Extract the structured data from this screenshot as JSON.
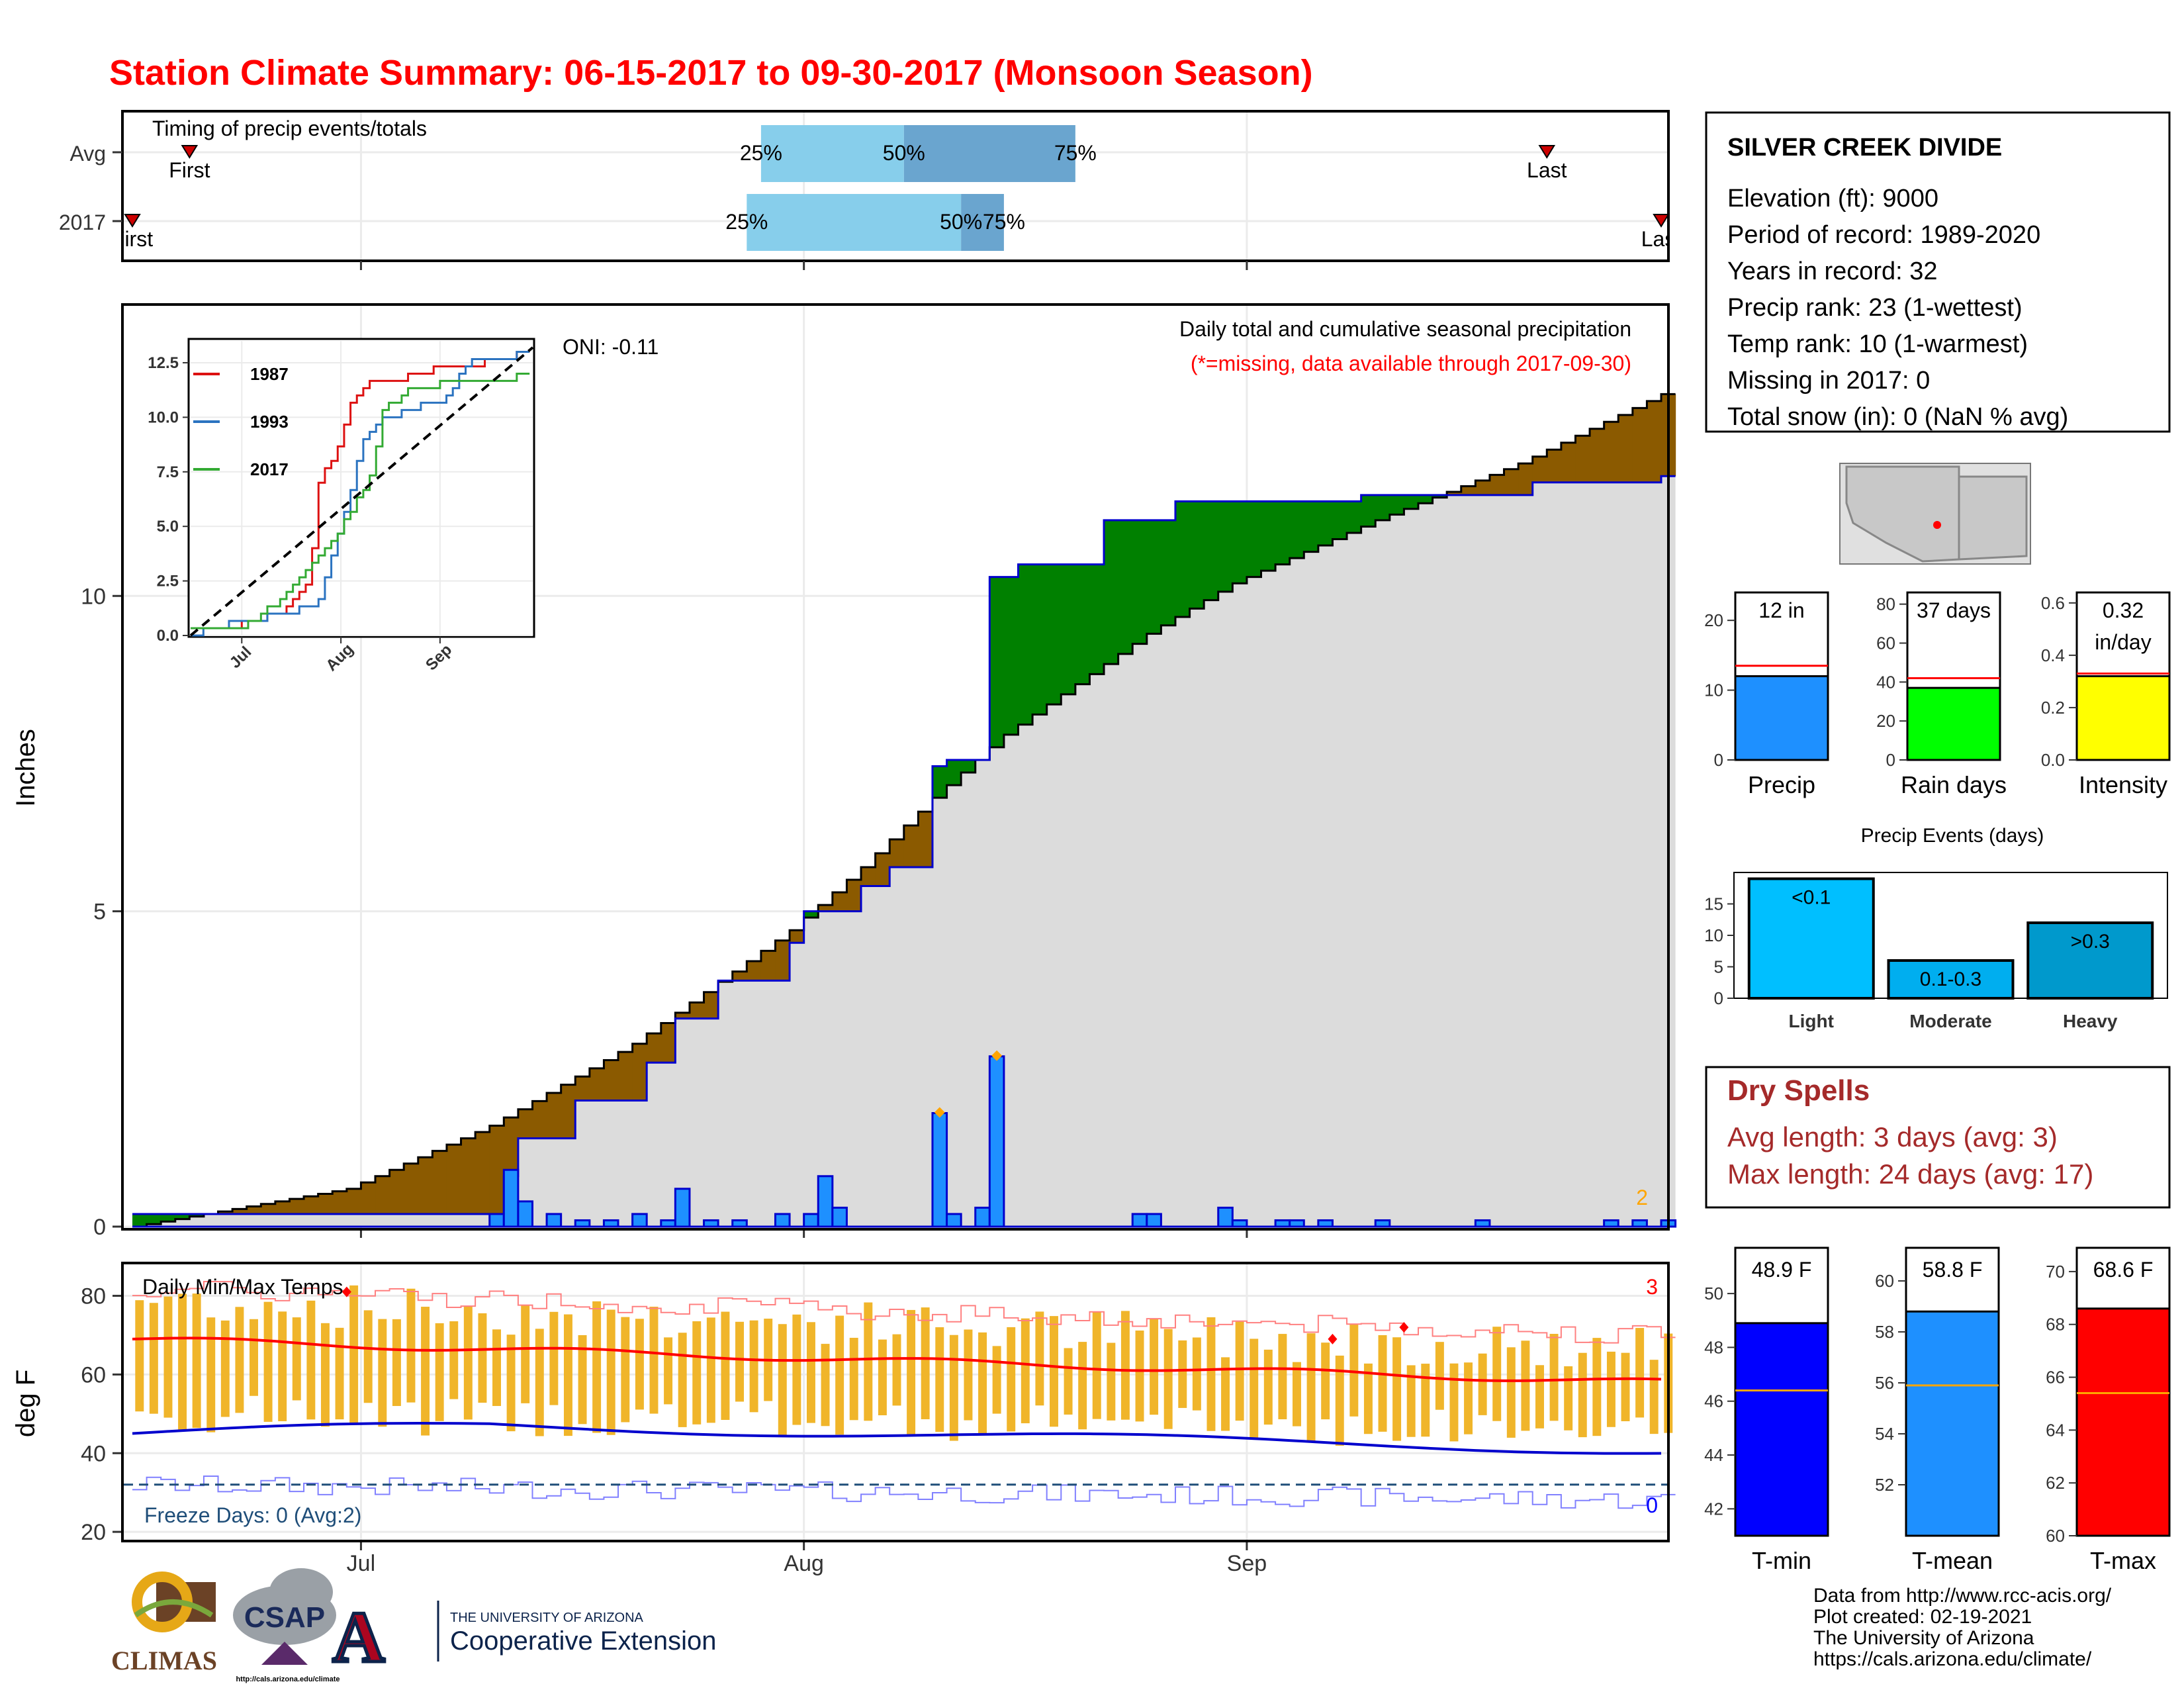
{
  "title": "Station Climate Summary: 06-15-2017 to 09-30-2017 (Monsoon Season)",
  "timing": {
    "title": "Timing of precip events/totals",
    "rows": [
      "Avg",
      "2017"
    ],
    "avg": {
      "first_label": "First",
      "last_label": "Last",
      "p25": "25%",
      "p50": "50%",
      "p75": "75%"
    },
    "y2017": {
      "first_label": "First",
      "last_label": "Last",
      "p25": "25%",
      "p50": "50%",
      "p75": "75%"
    }
  },
  "main": {
    "ylabel": "Inches",
    "caption": "Daily total and cumulative seasonal precipitation",
    "missing_note": "(*=missing, data available through 2017-09-30)",
    "oni": "ONI: -0.11",
    "missing_count": "2"
  },
  "inset": {
    "legend": [
      "1987",
      "1993",
      "2017"
    ],
    "legend_colors": [
      "#dd1111",
      "#2b73c0",
      "#33aa33"
    ],
    "yticks": [
      "0.0",
      "2.5",
      "5.0",
      "7.5",
      "10.0",
      "12.5"
    ],
    "xticks": [
      "Jul",
      "Aug",
      "Sep"
    ]
  },
  "temps": {
    "title": "Daily Min/Max Temps",
    "ylabel": "deg F",
    "freeze": "Freeze Days: 0 (Avg:2)",
    "max_count": "3",
    "min_count": "0",
    "yticks": [
      "20",
      "40",
      "60",
      "80"
    ]
  },
  "xaxis": {
    "ticks": [
      "Jul",
      "Aug",
      "Sep"
    ]
  },
  "station": {
    "name": "SILVER CREEK DIVIDE",
    "lines": [
      "Elevation (ft): 9000",
      "Period of record: 1989-2020",
      "Years in record: 32",
      "Precip rank: 23 (1-wettest)",
      "Temp rank: 10 (1-warmest)",
      "Missing in 2017: 0",
      "Total snow (in): 0 (NaN % avg)"
    ]
  },
  "mini_bars": [
    {
      "label": "Precip",
      "value_text": "12 in",
      "ticks": [
        "0",
        "10",
        "20"
      ],
      "color": "#1e90ff"
    },
    {
      "label": "Rain days",
      "value_text": "37 days",
      "ticks": [
        "0",
        "20",
        "40",
        "60",
        "80"
      ],
      "color": "#00ff00"
    },
    {
      "label": "Intensity",
      "value_text": "0.32",
      "value_text2": "in/day",
      "ticks": [
        "0.0",
        "0.2",
        "0.4",
        "0.6"
      ],
      "color": "#ffff00"
    }
  ],
  "events": {
    "title": "Precip Events (days)",
    "yticks": [
      "0",
      "5",
      "10",
      "15"
    ],
    "bars": [
      {
        "cat": "Light",
        "label": "<0.1",
        "color": "#00bfff"
      },
      {
        "cat": "Moderate",
        "label": "0.1-0.3",
        "color": "#00aeef"
      },
      {
        "cat": "Heavy",
        "label": ">0.3",
        "color": "#0099cc"
      }
    ]
  },
  "dry_spells": {
    "title": "Dry Spells",
    "avg_line": "Avg length: 3 days (avg: 3)",
    "max_line": "Max length: 24 days (avg: 17)"
  },
  "temp_bars": [
    {
      "label": "T-min",
      "value_text": "48.9 F",
      "ticks": [
        "42",
        "44",
        "46",
        "48",
        "50"
      ],
      "color": "#0000ff"
    },
    {
      "label": "T-mean",
      "value_text": "58.8 F",
      "ticks": [
        "52",
        "54",
        "56",
        "58",
        "60"
      ],
      "color": "#1e90ff"
    },
    {
      "label": "T-max",
      "value_text": "68.6 F",
      "ticks": [
        "60",
        "62",
        "64",
        "66",
        "68",
        "70"
      ],
      "color": "#ff0000"
    }
  ],
  "footer": {
    "lines": [
      "Data from http://www.rcc-acis.org/",
      "Plot created: 02-19-2021",
      "The University of Arizona",
      "https://cals.arizona.edu/climate/"
    ],
    "logo_climas": "CLIMAS",
    "logo_csap": "CSAP",
    "logo_csap_url": "http://cals.arizona.edu/climate",
    "ua_line1": "THE UNIVERSITY OF ARIZONA",
    "ua_line2": "Cooperative Extension",
    "ua_letter": "A"
  },
  "chart_data": [
    {
      "type": "bar",
      "title": "Timing of precip events/totals",
      "categories": [
        "Avg",
        "2017"
      ],
      "x_range": [
        "2017-06-15",
        "2017-09-30"
      ],
      "series": [
        {
          "name": "Avg",
          "first": "2017-06-19",
          "p25": "2017-07-29",
          "p50": "2017-08-08",
          "p75": "2017-08-20",
          "last": "2017-09-22"
        },
        {
          "name": "2017",
          "first": "2017-06-15",
          "p25": "2017-07-28",
          "p50": "2017-08-12",
          "p75": "2017-08-15",
          "last": "2017-09-30"
        }
      ]
    },
    {
      "type": "area",
      "title": "Daily total and cumulative seasonal precipitation",
      "ylabel": "Inches",
      "ylim": [
        0,
        14.6
      ],
      "x_range": [
        "2017-06-15",
        "2017-09-30"
      ],
      "xticks": [
        "Jul",
        "Aug",
        "Sep"
      ],
      "yticks": [
        0,
        5,
        10
      ],
      "cumulative_2017": {
        "x": [
          "2017-06-15",
          "2017-07-11",
          "2017-07-12",
          "2017-07-16",
          "2017-07-21",
          "2017-07-23",
          "2017-07-26",
          "2017-07-31",
          "2017-08-01",
          "2017-08-05",
          "2017-08-07",
          "2017-08-10",
          "2017-08-11",
          "2017-08-14",
          "2017-08-16",
          "2017-08-22",
          "2017-08-27",
          "2017-09-09",
          "2017-09-21",
          "2017-09-30"
        ],
        "y": [
          0.2,
          0.8,
          1.4,
          2.0,
          2.6,
          3.3,
          3.9,
          4.5,
          5.0,
          5.4,
          5.7,
          7.3,
          7.4,
          10.3,
          10.5,
          11.2,
          11.5,
          11.6,
          11.8,
          11.9
        ]
      },
      "cumulative_avg": {
        "x": [
          "2017-06-15",
          "2017-06-30",
          "2017-07-10",
          "2017-07-20",
          "2017-07-31",
          "2017-08-05",
          "2017-08-10",
          "2017-08-15",
          "2017-08-20",
          "2017-08-25",
          "2017-08-31",
          "2017-09-10",
          "2017-09-20",
          "2017-09-30"
        ],
        "y": [
          0.0,
          0.6,
          1.6,
          2.9,
          4.7,
          5.7,
          6.8,
          7.8,
          8.6,
          9.4,
          10.2,
          11.2,
          12.1,
          13.2
        ]
      },
      "daily_2017": {
        "x": [
          "2017-07-10",
          "2017-07-11",
          "2017-07-12",
          "2017-07-14",
          "2017-07-16",
          "2017-07-18",
          "2017-07-20",
          "2017-07-22",
          "2017-07-23",
          "2017-07-25",
          "2017-07-27",
          "2017-07-30",
          "2017-08-01",
          "2017-08-02",
          "2017-08-03",
          "2017-08-10",
          "2017-08-11",
          "2017-08-13",
          "2017-08-14",
          "2017-08-24",
          "2017-08-25",
          "2017-08-30",
          "2017-08-31",
          "2017-09-03",
          "2017-09-04",
          "2017-09-06",
          "2017-09-10",
          "2017-09-17",
          "2017-09-26",
          "2017-09-28",
          "2017-09-30"
        ],
        "y": [
          0.2,
          0.9,
          0.4,
          0.2,
          0.1,
          0.1,
          0.2,
          0.1,
          0.6,
          0.1,
          0.1,
          0.2,
          0.2,
          0.8,
          0.3,
          1.8,
          0.2,
          0.3,
          2.7,
          0.2,
          0.2,
          0.3,
          0.1,
          0.1,
          0.1,
          0.1,
          0.1,
          0.1,
          0.1,
          0.1,
          0.1
        ]
      }
    },
    {
      "type": "line",
      "title": "",
      "ylim": [
        0,
        13.5
      ],
      "yticks": [
        0.0,
        2.5,
        5.0,
        7.5,
        10.0,
        12.5
      ],
      "xticks": [
        "Jul",
        "Aug",
        "Sep"
      ],
      "series": [
        {
          "name": "1987",
          "x": [
            "2017-06-15",
            "2017-07-01",
            "2017-07-15",
            "2017-07-22",
            "2017-07-25",
            "2017-08-01",
            "2017-08-05",
            "2017-08-10",
            "2017-08-20",
            "2017-09-01",
            "2017-09-15",
            "2017-09-30"
          ],
          "y": [
            0.2,
            0.5,
            1.2,
            2.5,
            7.0,
            9.0,
            11.0,
            11.5,
            11.8,
            12.3,
            12.5,
            13.1
          ]
        },
        {
          "name": "1993",
          "x": [
            "2017-06-15",
            "2017-07-01",
            "2017-07-15",
            "2017-07-25",
            "2017-08-01",
            "2017-08-08",
            "2017-08-15",
            "2017-08-25",
            "2017-09-01",
            "2017-09-10",
            "2017-09-20",
            "2017-09-30"
          ],
          "y": [
            0.0,
            0.7,
            1.0,
            1.6,
            5.0,
            9.0,
            10.0,
            10.5,
            10.5,
            12.7,
            12.8,
            12.9
          ]
        },
        {
          "name": "2017",
          "x": [
            "2017-06-15",
            "2017-07-01",
            "2017-07-11",
            "2017-07-23",
            "2017-08-01",
            "2017-08-10",
            "2017-08-14",
            "2017-08-22",
            "2017-09-01",
            "2017-09-15",
            "2017-09-30"
          ],
          "y": [
            0.2,
            0.3,
            1.4,
            3.3,
            5.0,
            7.3,
            10.3,
            11.2,
            11.5,
            11.7,
            11.9
          ]
        },
        {
          "name": "Avg",
          "x": [
            "2017-06-15",
            "2017-09-30"
          ],
          "y": [
            0.0,
            13.2
          ]
        }
      ]
    },
    {
      "type": "bar",
      "title": "Daily Min/Max Temps",
      "ylabel": "deg F",
      "ylim": [
        18,
        88
      ],
      "yticks": [
        20,
        40,
        60,
        80
      ],
      "x_range": [
        "2017-06-15",
        "2017-09-30"
      ],
      "avg_max_start": 69,
      "avg_max_end": 58,
      "avg_min_start": 45,
      "avg_min_end": 41,
      "daily_max_range": [
        55,
        81
      ],
      "daily_min_range": [
        35,
        52
      ],
      "record_high_start": 82,
      "record_high_end": 70,
      "record_low_start": 32,
      "record_low_end": 28,
      "freeze_line": 32
    },
    {
      "type": "bar",
      "title": "",
      "categories": [
        "Precip"
      ],
      "values": [
        12
      ],
      "avg": 13.5,
      "ylim": [
        0,
        24
      ]
    },
    {
      "type": "bar",
      "title": "",
      "categories": [
        "Rain days"
      ],
      "values": [
        37
      ],
      "avg": 42,
      "ylim": [
        0,
        86
      ]
    },
    {
      "type": "bar",
      "title": "",
      "categories": [
        "Intensity"
      ],
      "values": [
        0.32
      ],
      "avg": 0.33,
      "ylim": [
        0,
        0.64
      ]
    },
    {
      "type": "bar",
      "title": "Precip Events (days)",
      "categories": [
        "Light",
        "Moderate",
        "Heavy"
      ],
      "values": [
        19,
        6,
        12
      ],
      "ylim": [
        0,
        20
      ]
    },
    {
      "type": "bar",
      "title": "",
      "categories": [
        "T-min"
      ],
      "values": [
        48.9
      ],
      "avg": 46.4,
      "ylim": [
        41,
        51.7
      ]
    },
    {
      "type": "bar",
      "title": "",
      "categories": [
        "T-mean"
      ],
      "values": [
        58.8
      ],
      "avg": 55.9,
      "ylim": [
        50,
        61.3
      ]
    },
    {
      "type": "bar",
      "title": "",
      "categories": [
        "T-max"
      ],
      "values": [
        68.6
      ],
      "avg": 65.4,
      "ylim": [
        60,
        70.9
      ]
    }
  ]
}
